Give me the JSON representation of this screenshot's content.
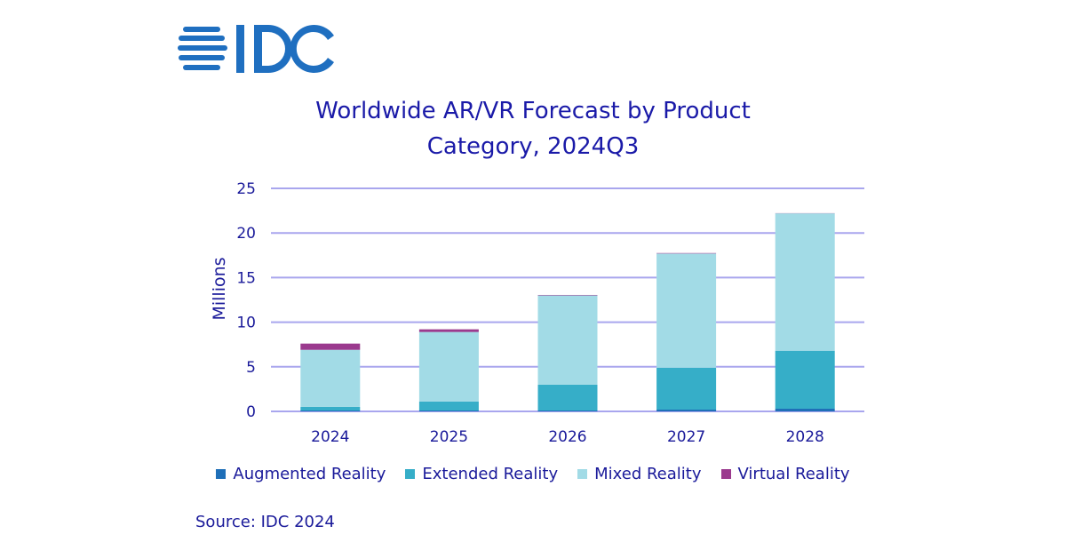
{
  "logo": {
    "text": "IDC",
    "color": "#1f6fc0"
  },
  "chart_data": {
    "type": "bar",
    "stacked": true,
    "title": "Worldwide AR/VR Forecast by Product Category, 2024Q3",
    "title_lines": [
      "Worldwide AR/VR Forecast by Product",
      "Category, 2024Q3"
    ],
    "ylabel": "Millions",
    "xlabel": "",
    "ylim": [
      0,
      25
    ],
    "yticks": [
      0,
      5,
      10,
      15,
      20,
      25
    ],
    "grid": true,
    "legend_position": "bottom",
    "categories": [
      "2024",
      "2025",
      "2026",
      "2027",
      "2028"
    ],
    "series": [
      {
        "name": "Augmented Reality",
        "color": "#1f6fb8",
        "values": [
          0.1,
          0.1,
          0.1,
          0.2,
          0.3
        ]
      },
      {
        "name": "Extended Reality",
        "color": "#36aec8",
        "values": [
          0.4,
          1.0,
          2.9,
          4.7,
          6.5
        ]
      },
      {
        "name": "Mixed Reality",
        "color": "#a2dbe6",
        "values": [
          6.4,
          7.8,
          10.0,
          12.8,
          15.4
        ]
      },
      {
        "name": "Virtual Reality",
        "color": "#9b3a8e",
        "values": [
          0.7,
          0.3,
          0.05,
          0.05,
          0.02
        ]
      }
    ]
  },
  "source": "Source: IDC 2024"
}
